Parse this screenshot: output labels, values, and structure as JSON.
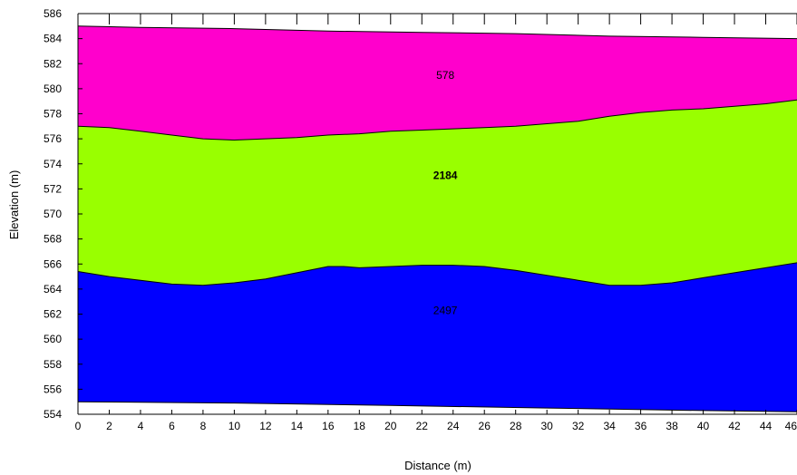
{
  "chart_data": {
    "type": "area",
    "xlabel": "Distance (m)",
    "ylabel": "Elevation (m)",
    "xlim": [
      0,
      46
    ],
    "ylim": [
      554,
      586
    ],
    "x_ticks": [
      "0",
      "2",
      "4",
      "6",
      "8",
      "10",
      "12",
      "14",
      "16",
      "18",
      "20",
      "22",
      "24",
      "26",
      "28",
      "30",
      "32",
      "34",
      "36",
      "38",
      "40",
      "42",
      "44",
      "46"
    ],
    "y_ticks": [
      "554",
      "556",
      "558",
      "560",
      "562",
      "564",
      "566",
      "568",
      "570",
      "572",
      "574",
      "576",
      "578",
      "580",
      "582",
      "584",
      "586"
    ],
    "boundaries": {
      "surface": {
        "x": [
          0,
          4,
          10,
          16,
          22,
          28,
          34,
          40,
          46
        ],
        "y": [
          585.0,
          584.9,
          584.8,
          584.6,
          584.5,
          584.4,
          584.2,
          584.1,
          584.0
        ]
      },
      "interface_1": {
        "x": [
          0,
          2,
          4,
          6,
          8,
          10,
          12,
          14,
          16,
          18,
          20,
          22,
          24,
          26,
          28,
          30,
          32,
          34,
          36,
          38,
          40,
          42,
          44,
          46
        ],
        "y": [
          577.0,
          576.9,
          576.6,
          576.3,
          576.0,
          575.9,
          576.0,
          576.1,
          576.3,
          576.4,
          576.6,
          576.7,
          576.8,
          576.9,
          577.0,
          577.2,
          577.4,
          577.8,
          578.1,
          578.3,
          578.4,
          578.6,
          578.8,
          579.1
        ]
      },
      "interface_2": {
        "x": [
          0,
          2,
          4,
          6,
          8,
          10,
          12,
          14,
          16,
          17,
          18,
          20,
          22,
          24,
          26,
          28,
          30,
          32,
          34,
          36,
          38,
          40,
          42,
          44,
          46
        ],
        "y": [
          565.4,
          565.0,
          564.7,
          564.4,
          564.3,
          564.5,
          564.8,
          565.3,
          565.8,
          565.8,
          565.7,
          565.8,
          565.9,
          565.9,
          565.8,
          565.5,
          565.1,
          564.7,
          564.3,
          564.3,
          564.5,
          564.9,
          565.3,
          565.7,
          566.1
        ]
      },
      "bottom": {
        "x": [
          0,
          10,
          20,
          30,
          40,
          46
        ],
        "y": [
          555.0,
          554.9,
          554.7,
          554.5,
          554.3,
          554.2
        ]
      }
    },
    "layers": [
      {
        "label": "578",
        "color": "#ff00cc",
        "x": 23.5,
        "y": 580.8
      },
      {
        "label": "2184",
        "color": "#99ff00",
        "x": 23.5,
        "y": 572.8
      },
      {
        "label": "2497",
        "color": "#0000ff",
        "x": 23.5,
        "y": 562.0
      }
    ],
    "grid": false
  }
}
